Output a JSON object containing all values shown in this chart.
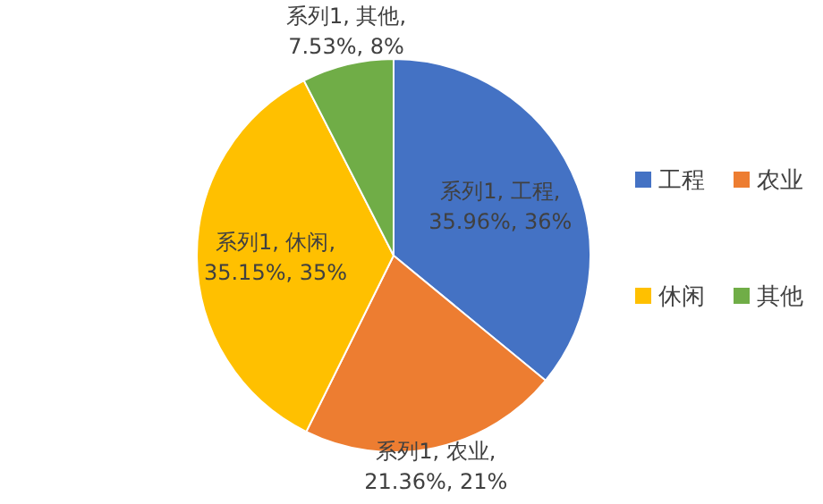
{
  "chart_data": {
    "type": "pie",
    "categories": [
      "工程",
      "农业",
      "休闲",
      "其他"
    ],
    "series": [
      {
        "values": [
          35.96,
          21.36,
          35.15,
          7.53
        ],
        "value_labels": [
          "系列1, 工程,\n35.96%, 36%",
          "系列1, 农业,\n21.36%, 21%",
          "系列1, 休闲,\n35.15%, 35%",
          "系列1, 其他,\n7.53%, 8%"
        ]
      }
    ],
    "colors": [
      "#4472c4",
      "#ed7d31",
      "#ffc000",
      "#70ad47"
    ],
    "legend": "right"
  }
}
